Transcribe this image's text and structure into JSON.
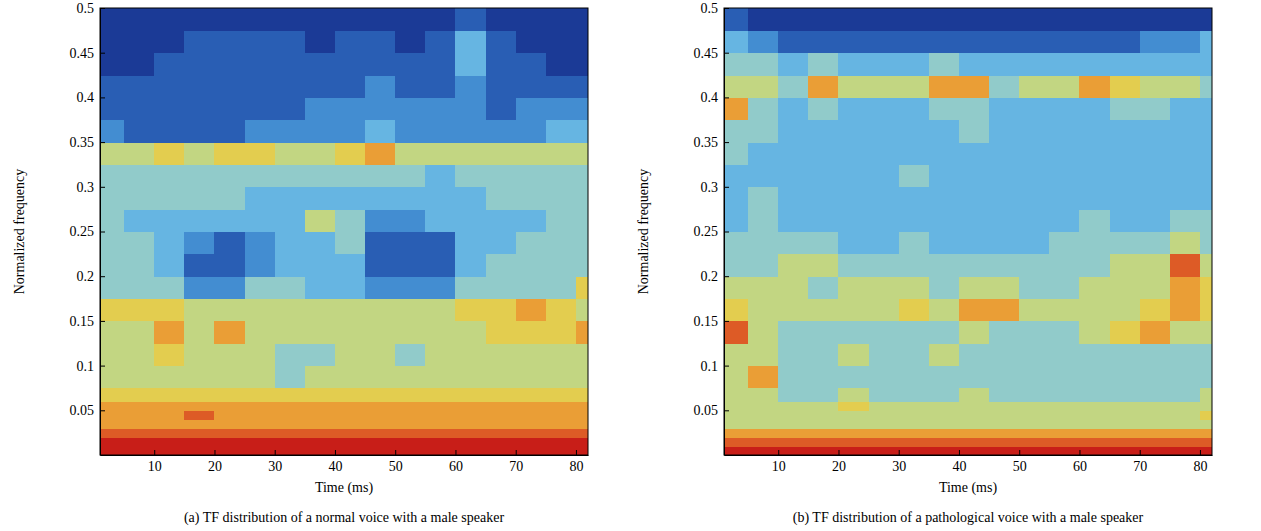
{
  "chart_data": [
    {
      "type": "heatmap",
      "title": "(a) TF distribution of a normal voice with a male speaker",
      "xlabel": "Time (ms)",
      "ylabel": "Normalized frequency",
      "xlim": [
        1,
        82
      ],
      "ylim": [
        0,
        0.5
      ],
      "xticks": [
        10,
        20,
        30,
        40,
        50,
        60,
        70,
        80
      ],
      "yticks": [
        0.05,
        0.1,
        0.15,
        0.2,
        0.25,
        0.3,
        0.35,
        0.4,
        0.45,
        0.5
      ],
      "x_bins": [
        1,
        5,
        10,
        15,
        20,
        25,
        30,
        35,
        40,
        45,
        50,
        55,
        60,
        65,
        70,
        75,
        80,
        82
      ],
      "y_bins": [
        0,
        0.01,
        0.02,
        0.03,
        0.04,
        0.05,
        0.06,
        0.075,
        0.1,
        0.125,
        0.15,
        0.175,
        0.2,
        0.225,
        0.25,
        0.275,
        0.3,
        0.325,
        0.35,
        0.375,
        0.4,
        0.425,
        0.45,
        0.475,
        0.5
      ],
      "zlim": [
        0,
        9
      ],
      "z": [
        [
          9,
          9,
          9,
          9,
          9,
          9,
          9,
          9,
          9,
          9,
          9,
          9,
          9,
          9,
          9,
          9,
          9
        ],
        [
          9,
          9,
          9,
          9,
          9,
          9,
          9,
          9,
          9,
          9,
          9,
          9,
          9,
          9,
          9,
          9,
          9
        ],
        [
          8,
          8,
          8,
          8,
          8,
          8,
          8,
          8,
          8,
          8,
          8,
          8,
          8,
          8,
          8,
          8,
          8
        ],
        [
          7,
          7,
          7,
          7,
          7,
          7,
          7,
          7,
          7,
          7,
          7,
          7,
          7,
          7,
          7,
          7,
          7
        ],
        [
          7,
          7,
          7,
          8,
          7,
          7,
          7,
          7,
          7,
          7,
          7,
          7,
          7,
          7,
          7,
          7,
          7
        ],
        [
          7,
          7,
          7,
          7,
          7,
          7,
          7,
          7,
          7,
          7,
          7,
          7,
          7,
          7,
          7,
          7,
          7
        ],
        [
          6,
          6,
          6,
          6,
          6,
          6,
          6,
          6,
          6,
          6,
          6,
          6,
          6,
          6,
          6,
          6,
          6
        ],
        [
          5,
          5,
          5,
          5,
          5,
          5,
          4,
          5,
          5,
          5,
          5,
          5,
          5,
          5,
          5,
          5,
          5
        ],
        [
          5,
          5,
          6,
          5,
          5,
          5,
          4,
          4,
          5,
          5,
          4,
          5,
          5,
          5,
          5,
          5,
          5
        ],
        [
          5,
          5,
          7,
          5,
          7,
          5,
          5,
          5,
          5,
          5,
          5,
          5,
          5,
          6,
          6,
          6,
          7
        ],
        [
          6,
          6,
          6,
          5,
          5,
          5,
          5,
          5,
          5,
          5,
          5,
          5,
          6,
          6,
          7,
          6,
          5
        ],
        [
          4,
          4,
          4,
          2,
          2,
          4,
          4,
          3,
          3,
          2,
          2,
          2,
          4,
          4,
          4,
          4,
          6
        ],
        [
          4,
          4,
          3,
          1,
          1,
          2,
          3,
          3,
          3,
          1,
          1,
          1,
          3,
          4,
          4,
          4,
          4
        ],
        [
          4,
          4,
          3,
          2,
          1,
          2,
          3,
          3,
          4,
          1,
          1,
          1,
          3,
          3,
          4,
          4,
          4
        ],
        [
          4,
          3,
          3,
          3,
          3,
          3,
          3,
          5,
          4,
          2,
          2,
          3,
          3,
          3,
          3,
          4,
          4
        ],
        [
          4,
          4,
          4,
          4,
          4,
          3,
          3,
          3,
          3,
          3,
          3,
          3,
          3,
          4,
          4,
          4,
          4
        ],
        [
          4,
          4,
          4,
          4,
          4,
          4,
          4,
          4,
          4,
          4,
          4,
          3,
          4,
          4,
          4,
          4,
          4
        ],
        [
          5,
          5,
          6,
          5,
          6,
          6,
          5,
          5,
          6,
          7,
          5,
          5,
          5,
          5,
          5,
          5,
          5
        ],
        [
          2,
          1,
          1,
          1,
          1,
          2,
          2,
          2,
          2,
          3,
          2,
          2,
          2,
          2,
          2,
          3,
          3
        ],
        [
          1,
          1,
          1,
          1,
          1,
          1,
          1,
          2,
          2,
          2,
          2,
          2,
          2,
          1,
          2,
          2,
          2
        ],
        [
          1,
          1,
          1,
          1,
          1,
          1,
          1,
          1,
          1,
          2,
          1,
          1,
          2,
          1,
          1,
          1,
          1
        ],
        [
          0,
          0,
          1,
          1,
          1,
          1,
          1,
          1,
          1,
          1,
          1,
          1,
          3,
          1,
          1,
          0,
          0
        ],
        [
          0,
          0,
          0,
          1,
          1,
          1,
          1,
          0,
          1,
          1,
          0,
          1,
          3,
          1,
          0,
          0,
          0
        ],
        [
          0,
          0,
          0,
          0,
          0,
          0,
          0,
          0,
          0,
          0,
          0,
          0,
          1,
          0,
          0,
          0,
          0
        ]
      ]
    },
    {
      "type": "heatmap",
      "title": "(b) TF distribution of a pathological voice with a male speaker",
      "xlabel": "Time (ms)",
      "ylabel": "Normalized frequency",
      "xlim": [
        1,
        82
      ],
      "ylim": [
        0,
        0.5
      ],
      "xticks": [
        10,
        20,
        30,
        40,
        50,
        60,
        70,
        80
      ],
      "yticks": [
        0.05,
        0.1,
        0.15,
        0.2,
        0.25,
        0.3,
        0.35,
        0.4,
        0.45,
        0.5
      ],
      "x_bins": [
        1,
        5,
        10,
        15,
        20,
        25,
        30,
        35,
        40,
        45,
        50,
        55,
        60,
        65,
        70,
        75,
        80,
        82
      ],
      "y_bins": [
        0,
        0.01,
        0.02,
        0.03,
        0.04,
        0.05,
        0.06,
        0.075,
        0.1,
        0.125,
        0.15,
        0.175,
        0.2,
        0.225,
        0.25,
        0.275,
        0.3,
        0.325,
        0.35,
        0.375,
        0.4,
        0.425,
        0.45,
        0.475,
        0.5
      ],
      "zlim": [
        0,
        9
      ],
      "z": [
        [
          9,
          9,
          9,
          9,
          9,
          9,
          9,
          9,
          9,
          9,
          9,
          9,
          9,
          9,
          9,
          9,
          9
        ],
        [
          8,
          8,
          8,
          8,
          8,
          8,
          8,
          8,
          8,
          8,
          8,
          8,
          8,
          8,
          8,
          8,
          8
        ],
        [
          7,
          7,
          7,
          7,
          7,
          7,
          7,
          7,
          7,
          7,
          7,
          7,
          7,
          7,
          7,
          7,
          7
        ],
        [
          5,
          5,
          5,
          5,
          5,
          5,
          5,
          5,
          5,
          5,
          5,
          5,
          5,
          5,
          5,
          5,
          5
        ],
        [
          5,
          5,
          5,
          5,
          5,
          5,
          5,
          5,
          5,
          5,
          5,
          5,
          5,
          5,
          5,
          5,
          6
        ],
        [
          5,
          5,
          5,
          5,
          6,
          5,
          5,
          5,
          5,
          5,
          5,
          5,
          5,
          5,
          5,
          5,
          5
        ],
        [
          5,
          5,
          4,
          4,
          5,
          4,
          4,
          4,
          5,
          4,
          4,
          4,
          4,
          4,
          4,
          4,
          5
        ],
        [
          5,
          7,
          4,
          4,
          4,
          4,
          4,
          4,
          4,
          4,
          4,
          4,
          4,
          4,
          4,
          4,
          4
        ],
        [
          5,
          5,
          4,
          4,
          5,
          4,
          4,
          5,
          4,
          4,
          4,
          4,
          4,
          4,
          4,
          4,
          4
        ],
        [
          8,
          5,
          4,
          4,
          4,
          4,
          4,
          4,
          5,
          4,
          4,
          4,
          5,
          6,
          7,
          5,
          5
        ],
        [
          6,
          5,
          5,
          5,
          5,
          5,
          6,
          5,
          7,
          7,
          5,
          5,
          5,
          5,
          6,
          7,
          6
        ],
        [
          5,
          5,
          5,
          4,
          5,
          5,
          5,
          4,
          5,
          5,
          4,
          4,
          5,
          5,
          5,
          7,
          6
        ],
        [
          4,
          4,
          5,
          5,
          4,
          4,
          4,
          4,
          4,
          4,
          4,
          4,
          4,
          5,
          5,
          8,
          5
        ],
        [
          4,
          4,
          4,
          4,
          3,
          3,
          4,
          3,
          3,
          3,
          3,
          4,
          4,
          4,
          4,
          5,
          4
        ],
        [
          3,
          4,
          3,
          3,
          3,
          3,
          3,
          3,
          3,
          3,
          3,
          3,
          4,
          3,
          3,
          4,
          4
        ],
        [
          3,
          4,
          3,
          3,
          3,
          3,
          3,
          3,
          3,
          3,
          3,
          3,
          3,
          3,
          3,
          3,
          3
        ],
        [
          3,
          3,
          3,
          3,
          3,
          3,
          4,
          3,
          3,
          3,
          3,
          3,
          3,
          3,
          3,
          3,
          3
        ],
        [
          4,
          3,
          3,
          3,
          3,
          3,
          3,
          3,
          3,
          3,
          3,
          3,
          3,
          3,
          3,
          3,
          3
        ],
        [
          4,
          4,
          3,
          3,
          3,
          3,
          3,
          3,
          4,
          3,
          3,
          3,
          3,
          3,
          3,
          3,
          3
        ],
        [
          7,
          4,
          3,
          4,
          3,
          3,
          3,
          4,
          4,
          3,
          3,
          3,
          3,
          4,
          4,
          3,
          3
        ],
        [
          5,
          5,
          4,
          7,
          5,
          5,
          5,
          7,
          7,
          4,
          5,
          5,
          7,
          6,
          5,
          5,
          4
        ],
        [
          4,
          4,
          3,
          4,
          3,
          3,
          3,
          4,
          3,
          3,
          3,
          3,
          3,
          3,
          3,
          3,
          3
        ],
        [
          3,
          2,
          1,
          1,
          1,
          1,
          1,
          1,
          1,
          1,
          1,
          1,
          1,
          1,
          2,
          2,
          3
        ],
        [
          1,
          0,
          0,
          0,
          0,
          0,
          0,
          0,
          0,
          0,
          0,
          0,
          0,
          0,
          0,
          0,
          0
        ]
      ]
    }
  ]
}
